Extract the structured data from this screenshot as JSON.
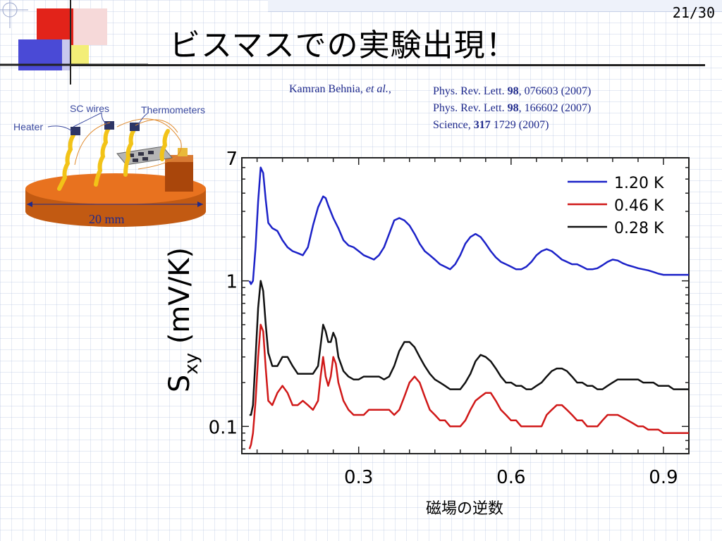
{
  "slide": {
    "page_number": "21/30",
    "title": "ビスマスでの実験出現！"
  },
  "reference": {
    "authors_name": "Kamran Behnia, ",
    "authors_etal": "et al.",
    "authors_tail": ",",
    "items": [
      {
        "journal": "Phys. Rev. Lett. ",
        "volume": "98",
        "rest": ", 076603 (2007)"
      },
      {
        "journal": "Phys. Rev. Lett. ",
        "volume": "98",
        "rest": ", 166602 (2007)"
      },
      {
        "journal": "Science, ",
        "volume": "317",
        "rest": " 1729 (2007)"
      }
    ]
  },
  "setup": {
    "label_heater": "Heater",
    "label_sc_wires": "SC wires",
    "label_thermometers": "Thermometers",
    "label_dimension": "20 mm",
    "color_base": "#e8721f",
    "color_coil": "#f2c318"
  },
  "chart_data": {
    "type": "line",
    "xlabel": "磁場の逆数",
    "ylabel_main": "S",
    "ylabel_sub": "xy",
    "ylabel_unit": " (mV/K)",
    "xlim": [
      0.07,
      0.95
    ],
    "ylim": [
      0.065,
      7
    ],
    "yscale": "log",
    "xticks": [
      0.3,
      0.6,
      0.9
    ],
    "xtick_labels": [
      "0.3",
      "0.6",
      "0.9"
    ],
    "yticks": [
      0.1,
      1,
      7
    ],
    "ytick_labels": [
      "0.1",
      "1",
      "7"
    ],
    "legend_position": "top-right",
    "series": [
      {
        "name": "1.20 K",
        "color": "#1c22c8",
        "x": [
          0.085,
          0.088,
          0.092,
          0.097,
          0.102,
          0.107,
          0.112,
          0.117,
          0.122,
          0.13,
          0.14,
          0.15,
          0.16,
          0.17,
          0.18,
          0.19,
          0.2,
          0.21,
          0.22,
          0.23,
          0.235,
          0.24,
          0.25,
          0.26,
          0.27,
          0.28,
          0.29,
          0.3,
          0.31,
          0.32,
          0.33,
          0.34,
          0.35,
          0.36,
          0.37,
          0.38,
          0.39,
          0.4,
          0.41,
          0.42,
          0.43,
          0.44,
          0.45,
          0.46,
          0.47,
          0.48,
          0.49,
          0.5,
          0.51,
          0.52,
          0.53,
          0.54,
          0.55,
          0.56,
          0.57,
          0.58,
          0.59,
          0.6,
          0.61,
          0.62,
          0.63,
          0.64,
          0.65,
          0.66,
          0.67,
          0.68,
          0.69,
          0.7,
          0.71,
          0.72,
          0.73,
          0.74,
          0.75,
          0.76,
          0.77,
          0.78,
          0.79,
          0.8,
          0.81,
          0.82,
          0.83,
          0.84,
          0.85,
          0.86,
          0.87,
          0.88,
          0.89,
          0.9,
          0.91,
          0.92,
          0.93,
          0.94,
          0.95
        ],
        "y": [
          1.0,
          0.95,
          1.0,
          1.7,
          3.5,
          6.0,
          5.5,
          3.6,
          2.5,
          2.3,
          2.2,
          1.9,
          1.7,
          1.6,
          1.55,
          1.5,
          1.7,
          2.4,
          3.2,
          3.8,
          3.7,
          3.3,
          2.7,
          2.3,
          1.9,
          1.75,
          1.7,
          1.6,
          1.5,
          1.45,
          1.4,
          1.5,
          1.7,
          2.1,
          2.6,
          2.7,
          2.6,
          2.4,
          2.1,
          1.8,
          1.6,
          1.5,
          1.4,
          1.3,
          1.25,
          1.2,
          1.3,
          1.5,
          1.8,
          2.0,
          2.1,
          2.0,
          1.8,
          1.6,
          1.45,
          1.35,
          1.3,
          1.25,
          1.2,
          1.2,
          1.25,
          1.35,
          1.5,
          1.6,
          1.65,
          1.6,
          1.5,
          1.4,
          1.35,
          1.3,
          1.3,
          1.25,
          1.2,
          1.2,
          1.22,
          1.28,
          1.35,
          1.4,
          1.38,
          1.32,
          1.28,
          1.25,
          1.22,
          1.2,
          1.18,
          1.15,
          1.12,
          1.1,
          1.1,
          1.1,
          1.1,
          1.1,
          1.1
        ]
      },
      {
        "name": "0.46 K",
        "color": "#d01818",
        "x": [
          0.085,
          0.088,
          0.092,
          0.097,
          0.102,
          0.107,
          0.112,
          0.117,
          0.122,
          0.13,
          0.14,
          0.15,
          0.16,
          0.17,
          0.18,
          0.19,
          0.2,
          0.21,
          0.22,
          0.225,
          0.23,
          0.235,
          0.24,
          0.245,
          0.25,
          0.255,
          0.26,
          0.27,
          0.28,
          0.29,
          0.3,
          0.31,
          0.32,
          0.33,
          0.34,
          0.35,
          0.36,
          0.37,
          0.38,
          0.39,
          0.4,
          0.41,
          0.42,
          0.43,
          0.44,
          0.45,
          0.46,
          0.47,
          0.48,
          0.49,
          0.5,
          0.51,
          0.52,
          0.53,
          0.54,
          0.55,
          0.56,
          0.57,
          0.58,
          0.59,
          0.6,
          0.61,
          0.62,
          0.63,
          0.64,
          0.65,
          0.66,
          0.67,
          0.68,
          0.69,
          0.7,
          0.71,
          0.72,
          0.73,
          0.74,
          0.75,
          0.76,
          0.77,
          0.78,
          0.79,
          0.8,
          0.81,
          0.82,
          0.83,
          0.84,
          0.85,
          0.86,
          0.87,
          0.88,
          0.89,
          0.9,
          0.91,
          0.92,
          0.93,
          0.94,
          0.95
        ],
        "y": [
          0.07,
          0.075,
          0.09,
          0.15,
          0.3,
          0.5,
          0.45,
          0.25,
          0.15,
          0.14,
          0.17,
          0.19,
          0.17,
          0.14,
          0.14,
          0.15,
          0.14,
          0.13,
          0.15,
          0.22,
          0.3,
          0.22,
          0.19,
          0.22,
          0.3,
          0.27,
          0.2,
          0.15,
          0.13,
          0.12,
          0.12,
          0.12,
          0.13,
          0.13,
          0.13,
          0.13,
          0.13,
          0.12,
          0.13,
          0.16,
          0.2,
          0.22,
          0.2,
          0.16,
          0.13,
          0.12,
          0.11,
          0.11,
          0.1,
          0.1,
          0.1,
          0.11,
          0.13,
          0.15,
          0.16,
          0.17,
          0.17,
          0.15,
          0.13,
          0.12,
          0.11,
          0.11,
          0.1,
          0.1,
          0.1,
          0.1,
          0.1,
          0.12,
          0.13,
          0.14,
          0.14,
          0.13,
          0.12,
          0.11,
          0.11,
          0.1,
          0.1,
          0.1,
          0.11,
          0.12,
          0.12,
          0.12,
          0.115,
          0.11,
          0.105,
          0.1,
          0.1,
          0.095,
          0.095,
          0.095,
          0.09,
          0.09,
          0.09,
          0.09,
          0.09,
          0.09
        ]
      },
      {
        "name": "0.28 K",
        "color": "#111111",
        "x": [
          0.085,
          0.088,
          0.092,
          0.097,
          0.102,
          0.107,
          0.112,
          0.117,
          0.122,
          0.13,
          0.14,
          0.15,
          0.16,
          0.17,
          0.18,
          0.19,
          0.2,
          0.21,
          0.22,
          0.225,
          0.23,
          0.235,
          0.24,
          0.245,
          0.25,
          0.255,
          0.26,
          0.27,
          0.28,
          0.29,
          0.3,
          0.31,
          0.32,
          0.33,
          0.34,
          0.35,
          0.36,
          0.37,
          0.38,
          0.39,
          0.4,
          0.41,
          0.42,
          0.43,
          0.44,
          0.45,
          0.46,
          0.47,
          0.48,
          0.49,
          0.5,
          0.51,
          0.52,
          0.53,
          0.54,
          0.55,
          0.56,
          0.57,
          0.58,
          0.59,
          0.6,
          0.61,
          0.62,
          0.63,
          0.64,
          0.65,
          0.66,
          0.67,
          0.68,
          0.69,
          0.7,
          0.71,
          0.72,
          0.73,
          0.74,
          0.75,
          0.76,
          0.77,
          0.78,
          0.79,
          0.8,
          0.81,
          0.82,
          0.83,
          0.84,
          0.85,
          0.86,
          0.87,
          0.88,
          0.89,
          0.9,
          0.91,
          0.92,
          0.93,
          0.94,
          0.95
        ],
        "y": [
          0.12,
          0.12,
          0.14,
          0.3,
          0.65,
          1.0,
          0.85,
          0.5,
          0.32,
          0.26,
          0.26,
          0.3,
          0.3,
          0.26,
          0.23,
          0.23,
          0.23,
          0.23,
          0.26,
          0.36,
          0.5,
          0.45,
          0.38,
          0.38,
          0.44,
          0.4,
          0.3,
          0.24,
          0.22,
          0.21,
          0.21,
          0.22,
          0.22,
          0.22,
          0.22,
          0.21,
          0.22,
          0.26,
          0.33,
          0.38,
          0.38,
          0.35,
          0.3,
          0.26,
          0.23,
          0.21,
          0.2,
          0.19,
          0.18,
          0.18,
          0.18,
          0.2,
          0.23,
          0.28,
          0.31,
          0.3,
          0.28,
          0.25,
          0.22,
          0.2,
          0.2,
          0.19,
          0.19,
          0.18,
          0.18,
          0.19,
          0.2,
          0.22,
          0.24,
          0.25,
          0.25,
          0.24,
          0.22,
          0.2,
          0.2,
          0.19,
          0.19,
          0.18,
          0.18,
          0.19,
          0.2,
          0.21,
          0.21,
          0.21,
          0.21,
          0.21,
          0.2,
          0.2,
          0.2,
          0.19,
          0.19,
          0.19,
          0.18,
          0.18,
          0.18,
          0.18
        ]
      }
    ]
  }
}
